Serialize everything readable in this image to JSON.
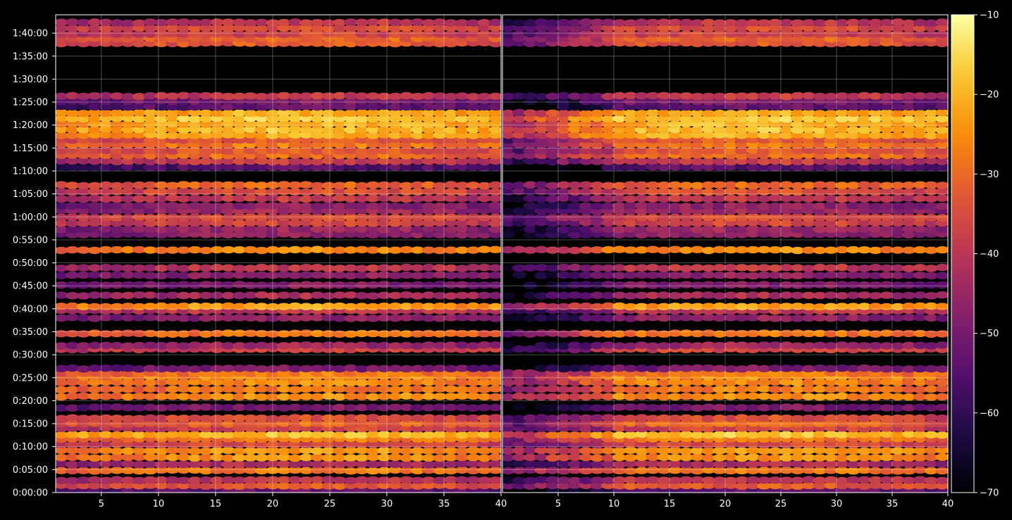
{
  "chart_data": {
    "type": "heatmap",
    "title": "",
    "xlabel": "",
    "ylabel": "",
    "panels": [
      {
        "name": "",
        "xlim": [
          1,
          40
        ],
        "xticks": [
          "5",
          "10",
          "15",
          "20",
          "25",
          "30",
          "35",
          "40"
        ]
      },
      {
        "name": "",
        "xlim": [
          0,
          40
        ],
        "xticks": [
          "5",
          "10",
          "15",
          "20",
          "25",
          "30",
          "35",
          "40"
        ]
      }
    ],
    "ylim_seconds": [
      0,
      6240
    ],
    "yticks": [
      "0:00:00",
      "0:05:00",
      "0:10:00",
      "0:15:00",
      "0:20:00",
      "0:25:00",
      "0:30:00",
      "0:35:00",
      "0:40:00",
      "0:45:00",
      "0:50:00",
      "0:55:00",
      "1:00:00",
      "1:05:00",
      "1:10:00",
      "1:15:00",
      "1:20:00",
      "1:25:00",
      "1:30:00",
      "1:35:00",
      "1:40:00"
    ],
    "grid": true,
    "colormap": "inferno",
    "colorbar": {
      "min": -70,
      "max": -10,
      "ticks": [
        "−70",
        "−60",
        "−50",
        "−40",
        "−30",
        "−20",
        "−10"
      ]
    },
    "bands_minutes_vs_level": [
      [
        0.5,
        -58
      ],
      [
        1.5,
        -38
      ],
      [
        2.7,
        -45
      ],
      [
        4.8,
        -33
      ],
      [
        6.2,
        -48
      ],
      [
        7.6,
        -30
      ],
      [
        9.1,
        -29
      ],
      [
        10.5,
        -40
      ],
      [
        11.7,
        -33
      ],
      [
        12.6,
        -24
      ],
      [
        14.0,
        -42
      ],
      [
        15.0,
        -36
      ],
      [
        16.2,
        -40
      ],
      [
        18.5,
        -55
      ],
      [
        20.9,
        -30
      ],
      [
        22.5,
        -33
      ],
      [
        24.0,
        -31
      ],
      [
        25.2,
        -30
      ],
      [
        26.0,
        -33
      ],
      [
        27.0,
        -55
      ],
      [
        31.2,
        -42
      ],
      [
        32.0,
        -50
      ],
      [
        34.6,
        -34
      ],
      [
        38.0,
        -52
      ],
      [
        39.6,
        -45
      ],
      [
        40.5,
        -28
      ],
      [
        42.9,
        -48
      ],
      [
        45.2,
        -54
      ],
      [
        47.3,
        -52
      ],
      [
        48.9,
        -45
      ],
      [
        52.8,
        -31
      ],
      [
        56.2,
        -52
      ],
      [
        57.3,
        -50
      ],
      [
        58.7,
        -42
      ],
      [
        59.9,
        -40
      ],
      [
        61.3,
        -50
      ],
      [
        62.4,
        -52
      ],
      [
        64.0,
        -45
      ],
      [
        65.5,
        -40
      ],
      [
        66.9,
        -36
      ],
      [
        70.8,
        -60
      ],
      [
        72.1,
        -44
      ],
      [
        73.4,
        -35
      ],
      [
        74.4,
        -38
      ],
      [
        75.7,
        -33
      ],
      [
        76.8,
        -38
      ],
      [
        77.8,
        -26
      ],
      [
        79.0,
        -24
      ],
      [
        80.2,
        -26
      ],
      [
        81.4,
        -22
      ],
      [
        82.6,
        -26
      ],
      [
        84.0,
        -58
      ],
      [
        85.2,
        -55
      ],
      [
        86.3,
        -44
      ],
      [
        97.8,
        -38
      ],
      [
        98.8,
        -36
      ],
      [
        99.8,
        -42
      ],
      [
        101.1,
        -40
      ],
      [
        102.3,
        -45
      ]
    ]
  }
}
